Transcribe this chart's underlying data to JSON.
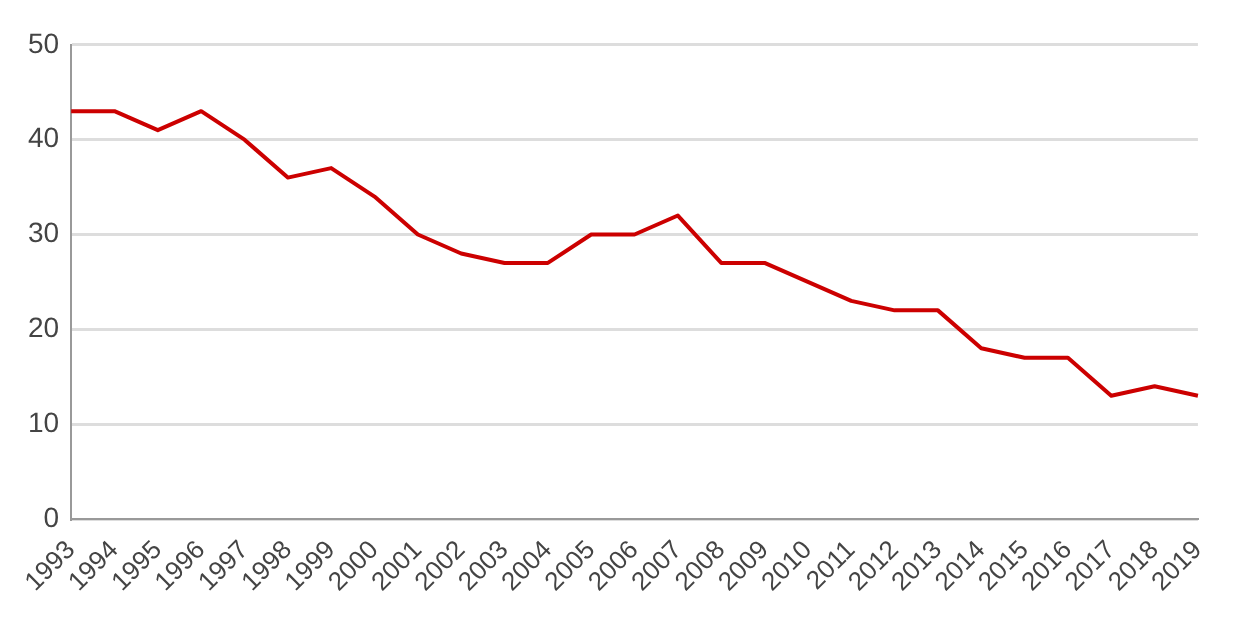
{
  "chart_data": {
    "type": "line",
    "categories": [
      "1993",
      "1994",
      "1995",
      "1996",
      "1997",
      "1998",
      "1999",
      "2000",
      "2001",
      "2002",
      "2003",
      "2004",
      "2005",
      "2006",
      "2007",
      "2008",
      "2009",
      "2010",
      "2011",
      "2012",
      "2013",
      "2014",
      "2015",
      "2016",
      "2017",
      "2018",
      "2019"
    ],
    "series": [
      {
        "color": "#cc0000",
        "values": [
          43,
          43,
          41,
          43,
          40,
          36,
          37,
          34,
          30,
          28,
          27,
          27,
          30,
          30,
          32,
          27,
          27,
          25,
          23,
          22,
          22,
          18,
          17,
          17,
          13,
          14,
          13
        ]
      }
    ],
    "ylim": [
      0,
      50
    ],
    "yticks": [
      0,
      10,
      20,
      30,
      40,
      50
    ],
    "grid": "y",
    "legend": false,
    "marker": "none",
    "line_style": "solid"
  }
}
